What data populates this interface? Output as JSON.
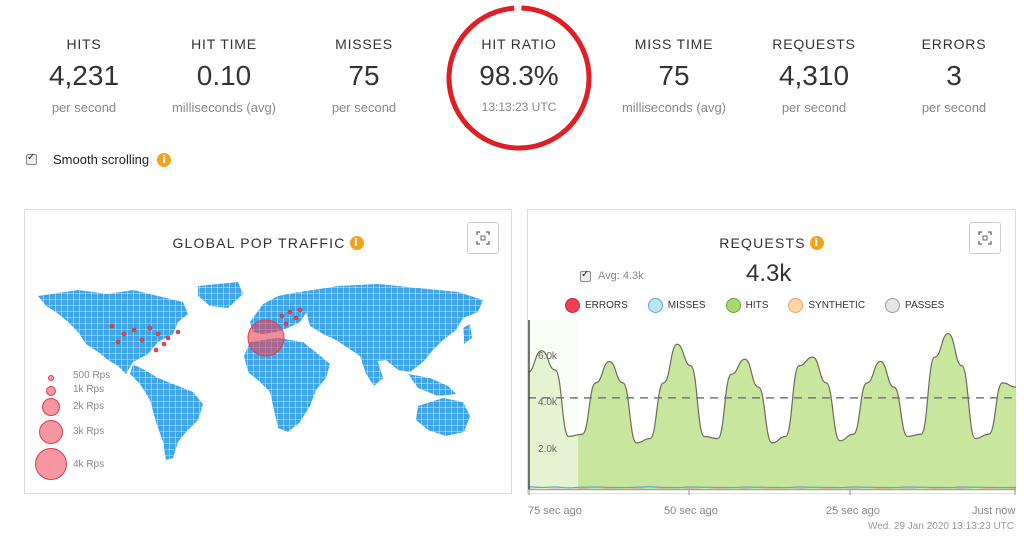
{
  "stats": [
    {
      "label": "HITS",
      "value": "4,231",
      "sub": "per second"
    },
    {
      "label": "HIT TIME",
      "value": "0.10",
      "sub": "milliseconds (avg)"
    },
    {
      "label": "MISSES",
      "value": "75",
      "sub": "per second"
    },
    {
      "label": "HIT RATIO",
      "value": "98.3%",
      "sub": "13:13:23 UTC"
    },
    {
      "label": "MISS TIME",
      "value": "75",
      "sub": "milliseconds (avg)"
    },
    {
      "label": "REQUESTS",
      "value": "4,310",
      "sub": "per second"
    },
    {
      "label": "ERRORS",
      "value": "3",
      "sub": "per second"
    }
  ],
  "hit_ratio_ring": {
    "fraction": 0.983,
    "color": "#e01e25"
  },
  "smooth_scrolling": {
    "label": "Smooth scrolling",
    "checked": true,
    "info_icon": "info-icon"
  },
  "map_panel": {
    "title": "GLOBAL POP TRAFFIC",
    "legend": [
      "500 Rps",
      "1k Rps",
      "2k Rps",
      "3k Rps",
      "4k Rps"
    ],
    "land_color": "#3ea5e6",
    "bubble_color": "#ec4054"
  },
  "requests_panel": {
    "title": "REQUESTS",
    "avg_label": "Avg: 4.3k",
    "avg_checked": true,
    "current_value": "4.3k",
    "legend": [
      {
        "name": "ERRORS",
        "color": "#ec4054"
      },
      {
        "name": "MISSES",
        "color": "#bfe3f5"
      },
      {
        "name": "HITS",
        "color": "#a7d86d"
      },
      {
        "name": "SYNTHETIC",
        "color": "#fbd7a8"
      },
      {
        "name": "PASSES",
        "color": "#e6e6e6"
      }
    ],
    "y_ticks": [
      "6.0k",
      "4.0k",
      "2.0k"
    ],
    "x_ticks": [
      "75 sec ago",
      "50 sec ago",
      "25 sec ago",
      "Just now"
    ],
    "timestamp": "Wed. 29 Jan 2020 13:13:23 UTC"
  },
  "chart_data": {
    "type": "area",
    "title": "REQUESTS",
    "x_ticks": [
      "75 sec ago",
      "50 sec ago",
      "25 sec ago",
      "Just now"
    ],
    "ylim": [
      0,
      7000
    ],
    "y_ticks": [
      "2.0k",
      "4.0k",
      "6.0k"
    ],
    "average": 4300,
    "series": [
      {
        "name": "HITS",
        "values": [
          5500,
          6500,
          5600,
          2500,
          2600,
          5000,
          6000,
          5000,
          2200,
          2400,
          5000,
          6800,
          5800,
          2500,
          2400,
          5400,
          6100,
          4800,
          2200,
          2500,
          5800,
          6200,
          5000,
          2300,
          2600,
          5000,
          6000,
          4800,
          2500,
          2600,
          6200,
          7300,
          5800,
          2400,
          2600,
          5000,
          4800
        ]
      },
      {
        "name": "MISSES",
        "values": [
          150,
          120,
          140,
          100,
          130,
          140,
          120,
          110,
          130,
          150,
          120,
          110,
          140,
          130,
          120,
          110,
          140,
          130,
          120,
          110,
          140,
          130,
          120,
          110,
          140,
          130,
          120,
          110,
          140,
          130,
          120,
          110,
          140,
          130,
          120,
          110,
          120
        ]
      },
      {
        "name": "ERRORS",
        "values": [
          30,
          20,
          30,
          20,
          30,
          20,
          30,
          20,
          30,
          20,
          30,
          20,
          30,
          20,
          30,
          20,
          30,
          20,
          30,
          20,
          30,
          20,
          30,
          20,
          30,
          20,
          30,
          20,
          30,
          20,
          30,
          20,
          30,
          20,
          30,
          20,
          30
        ]
      }
    ]
  }
}
